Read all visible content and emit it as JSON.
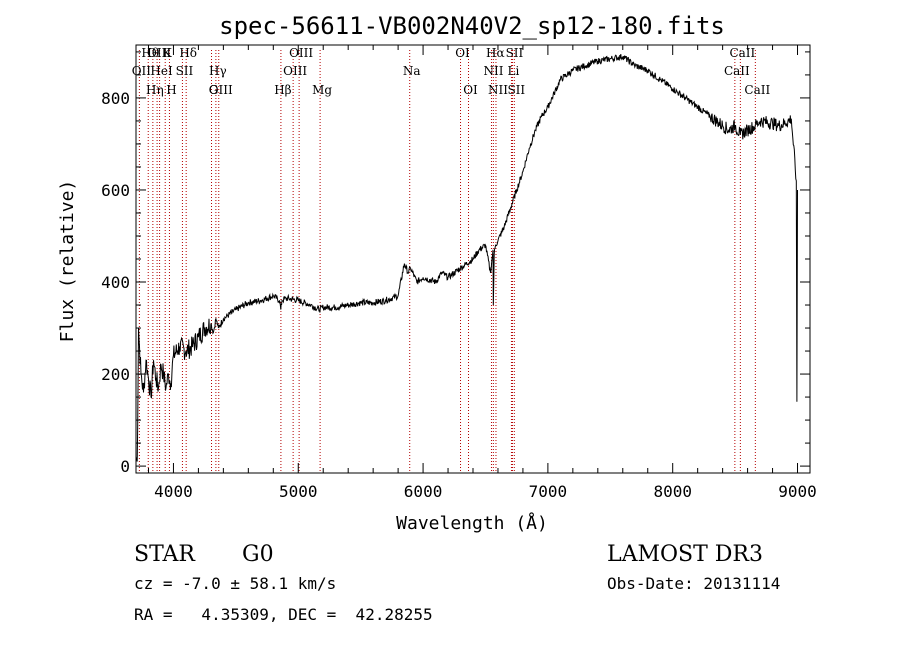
{
  "chart_data": {
    "type": "line",
    "title": "spec-56611-VB002N40V2_sp12-180.fits",
    "xlabel": "Wavelength (Å)",
    "ylabel": "Flux (relative)",
    "xlim": [
      3700,
      9100
    ],
    "ylim": [
      -15,
      915
    ],
    "xticks": [
      4000,
      5000,
      6000,
      7000,
      8000,
      9000
    ],
    "yticks": [
      0,
      200,
      400,
      600,
      800
    ],
    "xtick_labels": [
      "4000",
      "5000",
      "6000",
      "7000",
      "8000",
      "9000"
    ],
    "ytick_labels": [
      "0",
      "200",
      "400",
      "600",
      "800"
    ],
    "series": [
      {
        "name": "flux",
        "x": [
          3700,
          3710,
          3720,
          3740,
          3760,
          3780,
          3800,
          3820,
          3840,
          3860,
          3880,
          3900,
          3920,
          3940,
          3960,
          3980,
          4000,
          4050,
          4100,
          4150,
          4200,
          4250,
          4300,
          4320,
          4340,
          4360,
          4400,
          4500,
          4600,
          4700,
          4800,
          4850,
          4860,
          4870,
          4900,
          5000,
          5100,
          5170,
          5200,
          5300,
          5400,
          5500,
          5600,
          5700,
          5800,
          5850,
          5880,
          5900,
          5950,
          6000,
          6100,
          6150,
          6200,
          6300,
          6400,
          6450,
          6500,
          6540,
          6560,
          6563,
          6570,
          6580,
          6600,
          6650,
          6700,
          6750,
          6800,
          6850,
          6900,
          6950,
          7000,
          7050,
          7100,
          7200,
          7300,
          7400,
          7500,
          7600,
          7700,
          7800,
          7900,
          8000,
          8100,
          8200,
          8300,
          8400,
          8450,
          8500,
          8542,
          8600,
          8662,
          8700,
          8800,
          8850,
          8900,
          8950,
          8990,
          8995,
          9000
        ],
        "values": [
          20,
          10,
          300,
          200,
          160,
          230,
          190,
          150,
          230,
          190,
          170,
          220,
          200,
          170,
          200,
          180,
          240,
          260,
          250,
          260,
          280,
          300,
          310,
          290,
          320,
          300,
          320,
          340,
          355,
          360,
          370,
          360,
          340,
          360,
          365,
          360,
          350,
          340,
          345,
          345,
          350,
          355,
          355,
          360,
          370,
          440,
          420,
          430,
          400,
          410,
          400,
          420,
          410,
          430,
          450,
          470,
          480,
          420,
          470,
          350,
          460,
          480,
          490,
          520,
          560,
          600,
          640,
          690,
          730,
          760,
          780,
          810,
          840,
          860,
          870,
          880,
          885,
          890,
          870,
          860,
          840,
          820,
          800,
          780,
          760,
          740,
          730,
          740,
          720,
          730,
          740,
          750,
          745,
          740,
          745,
          755,
          620,
          140,
          600
        ]
      }
    ],
    "lines": [
      {
        "name": "Hθ",
        "x": 3798
      },
      {
        "name": "OII",
        "x": 3727
      },
      {
        "name": "OIII",
        "x": 3869
      },
      {
        "name": "K",
        "x": 3934
      },
      {
        "name": "HeI",
        "x": 3889
      },
      {
        "name": "Hη",
        "x": 3835
      },
      {
        "name": "H",
        "x": 3968
      },
      {
        "name": "Hδ",
        "x": 4102
      },
      {
        "name": "SII",
        "x": 4072
      },
      {
        "name": "OIII",
        "x": 4363
      },
      {
        "name": "Hγ",
        "x": 4340
      },
      {
        "name": "G",
        "x": 4305
      },
      {
        "name": "OIII",
        "x": 5007
      },
      {
        "name": "OIII",
        "x": 4959
      },
      {
        "name": "Hβ",
        "x": 4861
      },
      {
        "name": "Mg",
        "x": 5175
      },
      {
        "name": "Na",
        "x": 5893
      },
      {
        "name": "OI",
        "x": 6300
      },
      {
        "name": "OI",
        "x": 6364
      },
      {
        "name": "Hα",
        "x": 6563
      },
      {
        "name": "NII",
        "x": 6548
      },
      {
        "name": "NII",
        "x": 6584
      },
      {
        "name": "SII",
        "x": 6716
      },
      {
        "name": "Li",
        "x": 6708
      },
      {
        "name": "SII",
        "x": 6731
      },
      {
        "name": "CaII",
        "x": 8542
      },
      {
        "name": "CaII",
        "x": 8498
      },
      {
        "name": "CaII",
        "x": 8662
      }
    ],
    "annotations": {
      "class": "STAR",
      "subclass": "G0",
      "survey": "LAMOST DR3",
      "velocity": "cz = -7.0 ± 58.1 km/s",
      "obs_date": "Obs-Date: 20131114",
      "coords": "RA =   4.35309, DEC =  42.28255"
    }
  },
  "colors": {
    "axis": "#000000",
    "spectrum": "#000000",
    "line_marker": "#b40000",
    "background": "#ffffff"
  }
}
